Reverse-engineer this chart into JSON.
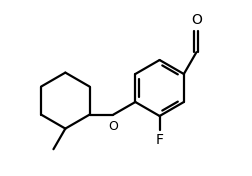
{
  "background_color": "#ffffff",
  "line_color": "#000000",
  "line_width": 1.6,
  "label_F": "F",
  "label_O": "O",
  "label_CHO": "O",
  "font_size_atom": 10
}
